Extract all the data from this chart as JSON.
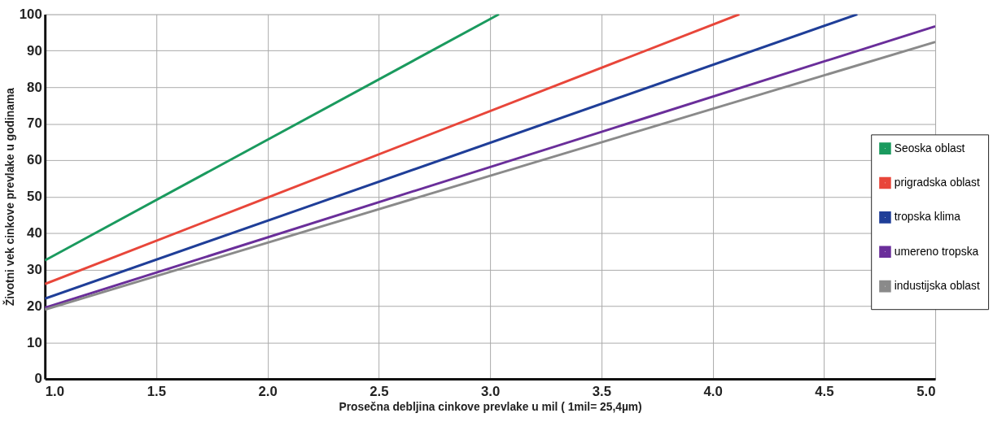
{
  "chart_data": {
    "type": "line",
    "xlabel": "Prosečna debljina cinkove prevlake u mil ( 1mil= 25,4µm)",
    "ylabel": "Životni vek cinkove prevlake u godinama",
    "xlim": [
      1.0,
      5.0
    ],
    "xticks": [
      {
        "value": 1,
        "label": "1.0"
      },
      {
        "value": 1.5,
        "label": "1.5"
      },
      {
        "value": 2,
        "label": "2.0"
      },
      {
        "value": 2.5,
        "label": "2.5"
      },
      {
        "value": 3,
        "label": "3.0"
      },
      {
        "value": 3.5,
        "label": "3.5"
      },
      {
        "value": 4,
        "label": "4.0"
      },
      {
        "value": 4.5,
        "label": "4.5"
      },
      {
        "value": 5,
        "label": "5.0"
      }
    ],
    "ylim": [
      0,
      100
    ],
    "yticks": [
      0,
      10,
      20,
      30,
      40,
      50,
      60,
      70,
      80,
      90,
      100
    ],
    "grid": true,
    "legend": "right",
    "marker": "none",
    "line_style": "solid",
    "series": [
      {
        "name": "Seoska oblast",
        "color": "#1a9a5e",
        "x": [
          1.0,
          3.04
        ],
        "values": [
          32.5,
          100
        ]
      },
      {
        "name": "prigradska oblast",
        "color": "#e8463a",
        "x": [
          1.0,
          4.12
        ],
        "values": [
          26,
          100
        ]
      },
      {
        "name": "tropska klima",
        "color": "#1f3e98",
        "x": [
          1.0,
          4.65
        ],
        "values": [
          22,
          100
        ]
      },
      {
        "name": "umereno tropska",
        "color": "#6a2e9a",
        "x": [
          1.0,
          5.0
        ],
        "values": [
          19.5,
          96.7
        ]
      },
      {
        "name": "industijska oblast",
        "color": "#8a8a8a",
        "x": [
          1.0,
          5.0
        ],
        "values": [
          19,
          92.4
        ]
      }
    ]
  }
}
